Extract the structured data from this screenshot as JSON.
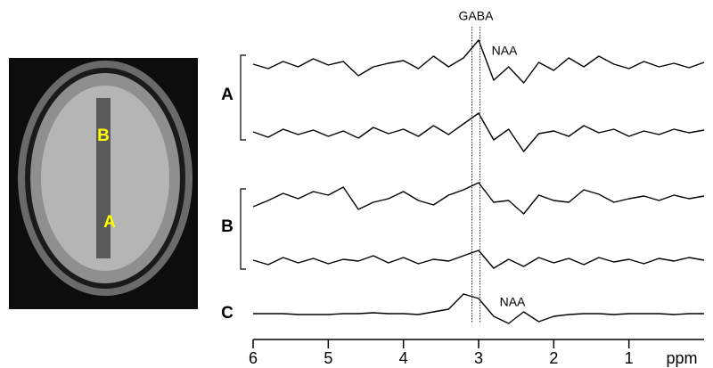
{
  "image": {
    "labels": [
      "B",
      "A"
    ]
  },
  "chart_data": {
    "type": "line",
    "x": [
      6.0,
      5.8,
      5.6,
      5.4,
      5.2,
      5.0,
      4.8,
      4.6,
      4.4,
      4.2,
      4.0,
      3.8,
      3.6,
      3.4,
      3.2,
      3.0,
      2.8,
      2.6,
      2.4,
      2.2,
      2.0,
      1.8,
      1.6,
      1.4,
      1.2,
      1.0,
      0.8,
      0.6,
      0.4,
      0.2,
      0.0
    ],
    "groups": [
      {
        "label": "A",
        "series": [
          {
            "color": "#000000",
            "values": [
              303,
              298,
              306,
              300,
              309,
              302,
              306,
              290,
              300,
              304,
              307,
              298,
              312,
              300,
              310,
              330,
              285,
              300,
              282,
              305,
              296,
              310,
              300,
              312,
              303,
              298,
              306,
              300,
              304,
              299,
              305
            ]
          },
          {
            "color": "#000000",
            "values": [
              227,
              221,
              230,
              224,
              229,
              222,
              228,
              220,
              232,
              225,
              230,
              222,
              234,
              224,
              236,
              248,
              218,
              230,
              205,
              225,
              228,
              222,
              234,
              226,
              230,
              222,
              228,
              224,
              230,
              226,
              229
            ]
          }
        ]
      },
      {
        "label": "B",
        "series": [
          {
            "color": "#000000",
            "values": [
              143,
              150,
              158,
              152,
              160,
              156,
              165,
              140,
              148,
              152,
              160,
              150,
              145,
              156,
              162,
              170,
              148,
              150,
              135,
              156,
              150,
              148,
              162,
              157,
              148,
              152,
              155,
              150,
              156,
              152,
              155
            ]
          },
          {
            "color": "#000000",
            "values": [
              83,
              78,
              86,
              80,
              85,
              79,
              84,
              82,
              88,
              80,
              86,
              79,
              84,
              82,
              88,
              94,
              74,
              84,
              76,
              86,
              80,
              85,
              78,
              86,
              81,
              84,
              79,
              85,
              82,
              86,
              83
            ]
          }
        ]
      },
      {
        "label": "C",
        "series": [
          {
            "color": "#000000",
            "values": [
              23,
              23,
              23,
              22,
              22,
              22,
              23,
              23,
              24,
              23,
              23,
              22,
              25,
              28,
              45,
              40,
              20,
              12,
              25,
              14,
              20,
              22,
              23,
              23,
              22,
              23,
              23,
              23,
              22,
              23,
              23
            ]
          }
        ]
      }
    ],
    "reference_lines": [
      3.09,
      2.98
    ],
    "annotations": [
      "GABA",
      "NAA",
      "NAA"
    ],
    "xlabel": "ppm",
    "xlim": [
      6,
      0
    ],
    "xticks": [
      6,
      5,
      4,
      3,
      2,
      1
    ],
    "ylim": [
      0,
      330
    ]
  }
}
